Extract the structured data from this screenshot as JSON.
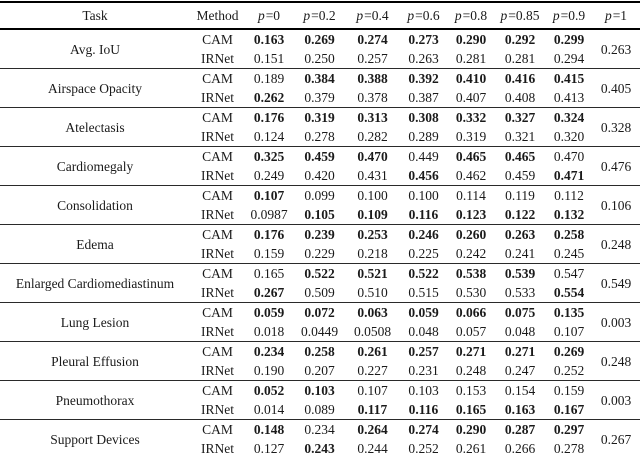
{
  "table": {
    "columns": [
      {
        "label": "Task"
      },
      {
        "label": "Method"
      },
      {
        "var": "p",
        "eq": "=0"
      },
      {
        "var": "p",
        "eq": "=0.2"
      },
      {
        "var": "p",
        "eq": "=0.4"
      },
      {
        "var": "p",
        "eq": "=0.6"
      },
      {
        "var": "p",
        "eq": "=0.8"
      },
      {
        "var": "p",
        "eq": "=0.85"
      },
      {
        "var": "p",
        "eq": "=0.9"
      },
      {
        "var": "p",
        "eq": "=1"
      }
    ],
    "groups": [
      {
        "task": "Avg. IoU",
        "p1": "0.263",
        "rows": [
          {
            "method": "CAM",
            "values": [
              "0.163",
              "0.269",
              "0.274",
              "0.273",
              "0.290",
              "0.292",
              "0.299"
            ],
            "bold": [
              1,
              1,
              1,
              1,
              1,
              1,
              1
            ]
          },
          {
            "method": "IRNet",
            "values": [
              "0.151",
              "0.250",
              "0.257",
              "0.263",
              "0.281",
              "0.281",
              "0.294"
            ],
            "bold": [
              0,
              0,
              0,
              0,
              0,
              0,
              0
            ]
          }
        ]
      },
      {
        "task": "Airspace Opacity",
        "p1": "0.405",
        "rows": [
          {
            "method": "CAM",
            "values": [
              "0.189",
              "0.384",
              "0.388",
              "0.392",
              "0.410",
              "0.416",
              "0.415"
            ],
            "bold": [
              0,
              1,
              1,
              1,
              1,
              1,
              1
            ]
          },
          {
            "method": "IRNet",
            "values": [
              "0.262",
              "0.379",
              "0.378",
              "0.387",
              "0.407",
              "0.408",
              "0.413"
            ],
            "bold": [
              1,
              0,
              0,
              0,
              0,
              0,
              0
            ]
          }
        ]
      },
      {
        "task": "Atelectasis",
        "p1": "0.328",
        "rows": [
          {
            "method": "CAM",
            "values": [
              "0.176",
              "0.319",
              "0.313",
              "0.308",
              "0.332",
              "0.327",
              "0.324"
            ],
            "bold": [
              1,
              1,
              1,
              1,
              1,
              1,
              1
            ]
          },
          {
            "method": "IRNet",
            "values": [
              "0.124",
              "0.278",
              "0.282",
              "0.289",
              "0.319",
              "0.321",
              "0.320"
            ],
            "bold": [
              0,
              0,
              0,
              0,
              0,
              0,
              0
            ]
          }
        ]
      },
      {
        "task": "Cardiomegaly",
        "p1": "0.476",
        "rows": [
          {
            "method": "CAM",
            "values": [
              "0.325",
              "0.459",
              "0.470",
              "0.449",
              "0.465",
              "0.465",
              "0.470"
            ],
            "bold": [
              1,
              1,
              1,
              0,
              1,
              1,
              0
            ]
          },
          {
            "method": "IRNet",
            "values": [
              "0.249",
              "0.420",
              "0.431",
              "0.456",
              "0.462",
              "0.459",
              "0.471"
            ],
            "bold": [
              0,
              0,
              0,
              1,
              0,
              0,
              1
            ]
          }
        ]
      },
      {
        "task": "Consolidation",
        "p1": "0.106",
        "rows": [
          {
            "method": "CAM",
            "values": [
              "0.107",
              "0.099",
              "0.100",
              "0.100",
              "0.114",
              "0.119",
              "0.112"
            ],
            "bold": [
              1,
              0,
              0,
              0,
              0,
              0,
              0
            ]
          },
          {
            "method": "IRNet",
            "values": [
              "0.0987",
              "0.105",
              "0.109",
              "0.116",
              "0.123",
              "0.122",
              "0.132"
            ],
            "bold": [
              0,
              1,
              1,
              1,
              1,
              1,
              1
            ]
          }
        ]
      },
      {
        "task": "Edema",
        "p1": "0.248",
        "rows": [
          {
            "method": "CAM",
            "values": [
              "0.176",
              "0.239",
              "0.253",
              "0.246",
              "0.260",
              "0.263",
              "0.258"
            ],
            "bold": [
              1,
              1,
              1,
              1,
              1,
              1,
              1
            ]
          },
          {
            "method": "IRNet",
            "values": [
              "0.159",
              "0.229",
              "0.218",
              "0.225",
              "0.242",
              "0.241",
              "0.245"
            ],
            "bold": [
              0,
              0,
              0,
              0,
              0,
              0,
              0
            ]
          }
        ]
      },
      {
        "task": "Enlarged Cardiomediastinum",
        "p1": "0.549",
        "rows": [
          {
            "method": "CAM",
            "values": [
              "0.165",
              "0.522",
              "0.521",
              "0.522",
              "0.538",
              "0.539",
              "0.547"
            ],
            "bold": [
              0,
              1,
              1,
              1,
              1,
              1,
              0
            ]
          },
          {
            "method": "IRNet",
            "values": [
              "0.267",
              "0.509",
              "0.510",
              "0.515",
              "0.530",
              "0.533",
              "0.554"
            ],
            "bold": [
              1,
              0,
              0,
              0,
              0,
              0,
              1
            ]
          }
        ]
      },
      {
        "task": "Lung Lesion",
        "p1": "0.003",
        "rows": [
          {
            "method": "CAM",
            "values": [
              "0.059",
              "0.072",
              "0.063",
              "0.059",
              "0.066",
              "0.075",
              "0.135"
            ],
            "bold": [
              1,
              1,
              1,
              1,
              1,
              1,
              1
            ]
          },
          {
            "method": "IRNet",
            "values": [
              "0.018",
              "0.0449",
              "0.0508",
              "0.048",
              "0.057",
              "0.048",
              "0.107"
            ],
            "bold": [
              0,
              0,
              0,
              0,
              0,
              0,
              0
            ]
          }
        ]
      },
      {
        "task": "Pleural Effusion",
        "p1": "0.248",
        "rows": [
          {
            "method": "CAM",
            "values": [
              "0.234",
              "0.258",
              "0.261",
              "0.257",
              "0.271",
              "0.271",
              "0.269"
            ],
            "bold": [
              1,
              1,
              1,
              1,
              1,
              1,
              1
            ]
          },
          {
            "method": "IRNet",
            "values": [
              "0.190",
              "0.207",
              "0.227",
              "0.231",
              "0.248",
              "0.247",
              "0.252"
            ],
            "bold": [
              0,
              0,
              0,
              0,
              0,
              0,
              0
            ]
          }
        ]
      },
      {
        "task": "Pneumothorax",
        "p1": "0.003",
        "rows": [
          {
            "method": "CAM",
            "values": [
              "0.052",
              "0.103",
              "0.107",
              "0.103",
              "0.153",
              "0.154",
              "0.159"
            ],
            "bold": [
              1,
              1,
              0,
              0,
              0,
              0,
              0
            ]
          },
          {
            "method": "IRNet",
            "values": [
              "0.014",
              "0.089",
              "0.117",
              "0.116",
              "0.165",
              "0.163",
              "0.167"
            ],
            "bold": [
              0,
              0,
              1,
              1,
              1,
              1,
              1
            ]
          }
        ]
      },
      {
        "task": "Support Devices",
        "p1": "0.267",
        "rows": [
          {
            "method": "CAM",
            "values": [
              "0.148",
              "0.234",
              "0.264",
              "0.274",
              "0.290",
              "0.287",
              "0.297"
            ],
            "bold": [
              1,
              0,
              1,
              1,
              1,
              1,
              1
            ]
          },
          {
            "method": "IRNet",
            "values": [
              "0.127",
              "0.243",
              "0.244",
              "0.252",
              "0.261",
              "0.266",
              "0.278"
            ],
            "bold": [
              0,
              1,
              0,
              0,
              0,
              0,
              0
            ]
          }
        ]
      }
    ]
  }
}
